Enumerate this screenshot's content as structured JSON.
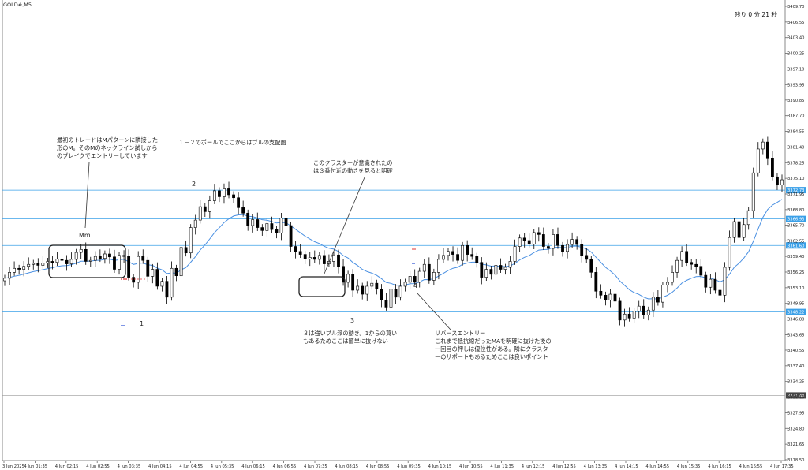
{
  "symbol": "GOLD#,M5",
  "timer": "残り 0 分 21 秒",
  "colors": {
    "grid": "#cccccc",
    "hline": "#3aa0e8",
    "ma": "#4a90e2",
    "candle": "#000000",
    "price_tag": "#3aa0e8",
    "bid_tag": "#444444"
  },
  "annotations": {
    "a1": "最初のトレードはMパターンに隣接した\n形のM。そのMのネックライン試しから\nのブレイクでエントリーしています",
    "a2": "１－２のポールでここからはブルの支配圏",
    "a3": "このクラスターが意識されたの\nは３番付近の動きを見ると明確",
    "a4": "３は強いブル派の動き。1からの買い\nもあるためここは簡単に抜けない",
    "a5": "リバースエントリー\nこれまで抵抗線だったMAを明確に抜けた後の\n一回目の押しは優位性がある。隣にクラスタ\nーのサポートもあるためここは良いポイント"
  },
  "labels": {
    "mm": "Mm",
    "n1": "1",
    "n2": "2",
    "n3": "3",
    "n4": "4"
  },
  "chart_data": {
    "type": "candlestick",
    "y_axis_ticks": [
      "3409.70",
      "3406.55",
      "3403.40",
      "3400.25",
      "3397.10",
      "3393.95",
      "3390.85",
      "3387.70",
      "3384.55",
      "3381.40",
      "3378.25",
      "3375.10",
      "3371.95",
      "3368.80",
      "3365.70",
      "3362.55",
      "3359.40",
      "3356.25",
      "3353.10",
      "3349.95",
      "3346.80",
      "3343.65",
      "3340.55",
      "3337.40",
      "3334.25",
      "3331.10",
      "3327.95",
      "3324.80",
      "3321.65",
      "3318.50"
    ],
    "x_axis_ticks": [
      "3 Jun 2025",
      "4 Jun 01:35",
      "4 Jun 02:15",
      "4 Jun 02:55",
      "4 Jun 03:35",
      "4 Jun 04:15",
      "4 Jun 04:55",
      "4 Jun 05:35",
      "4 Jun 06:15",
      "4 Jun 06:55",
      "4 Jun 07:35",
      "4 Jun 08:15",
      "4 Jun 08:55",
      "4 Jun 09:35",
      "4 Jun 10:15",
      "4 Jun 10:55",
      "4 Jun 11:35",
      "4 Jun 12:15",
      "4 Jun 12:55",
      "4 Jun 13:35",
      "4 Jun 14:15",
      "4 Jun 14:55",
      "4 Jun 15:35",
      "4 Jun 16:15",
      "4 Jun 16:55",
      "4 Jun 17:35"
    ],
    "ylim": [
      3318.5,
      3409.7
    ],
    "price_levels": [
      "3372.73",
      "3366.93",
      "3361.60",
      "3348.22"
    ],
    "bid_level": "3331.44",
    "close_series": [
      3355.0,
      3356.2,
      3357.0,
      3356.8,
      3357.4,
      3357.8,
      3358.0,
      3357.6,
      3358.1,
      3358.4,
      3358.2,
      3358.9,
      3358.6,
      3357.9,
      3358.8,
      3360.2,
      3360.8,
      3358.4,
      3358.6,
      3359.4,
      3359.0,
      3359.9,
      3359.3,
      3356.8,
      3359.6,
      3359.4,
      3355.2,
      3354.2,
      3359.4,
      3358.6,
      3355.4,
      3356.8,
      3353.4,
      3354.4,
      3351.2,
      3357.0,
      3355.5,
      3361.2,
      3360.1,
      3365.2,
      3366.7,
      3369.4,
      3368.4,
      3370.6,
      3372.6,
      3371.4,
      3373.0,
      3371.8,
      3371.2,
      3369.2,
      3368.1,
      3365.6,
      3366.8,
      3365.2,
      3364.6,
      3366.0,
      3364.8,
      3364.1,
      3367.1,
      3365.6,
      3361.4,
      3360.4,
      3359.8,
      3358.9,
      3359.2,
      3358.8,
      3359.6,
      3357.9,
      3358.4,
      3359.7,
      3357.4,
      3354.2,
      3355.8,
      3352.6,
      3353.4,
      3351.8,
      3353.4,
      3354.0,
      3352.8,
      3350.6,
      3349.2,
      3352.8,
      3351.2,
      3353.4,
      3354.2,
      3355.4,
      3354.2,
      3356.4,
      3357.8,
      3354.6,
      3356.2,
      3358.8,
      3359.6,
      3360.4,
      3359.8,
      3358.6,
      3361.6,
      3359.8,
      3359.4,
      3358.2,
      3355.2,
      3356.8,
      3355.8,
      3357.6,
      3356.8,
      3357.2,
      3358.4,
      3361.4,
      3363.1,
      3362.6,
      3361.9,
      3364.2,
      3363.8,
      3361.4,
      3361.0,
      3363.8,
      3361.6,
      3360.4,
      3361.8,
      3362.8,
      3361.8,
      3359.6,
      3358.8,
      3356.2,
      3352.4,
      3351.6,
      3350.6,
      3351.8,
      3350.4,
      3346.6,
      3347.8,
      3347.0,
      3348.4,
      3349.4,
      3347.6,
      3348.6,
      3351.2,
      3350.2,
      3353.6,
      3354.2,
      3356.2,
      3358.6,
      3360.4,
      3358.2,
      3357.8,
      3357.4,
      3355.6,
      3353.2,
      3354.8,
      3352.6,
      3351.6,
      3357.2,
      3363.2,
      3366.4,
      3363.2,
      3365.8,
      3368.6,
      3376.2,
      3381.0,
      3382.4,
      3379.2,
      3375.4,
      3373.8,
      3374.8
    ]
  }
}
